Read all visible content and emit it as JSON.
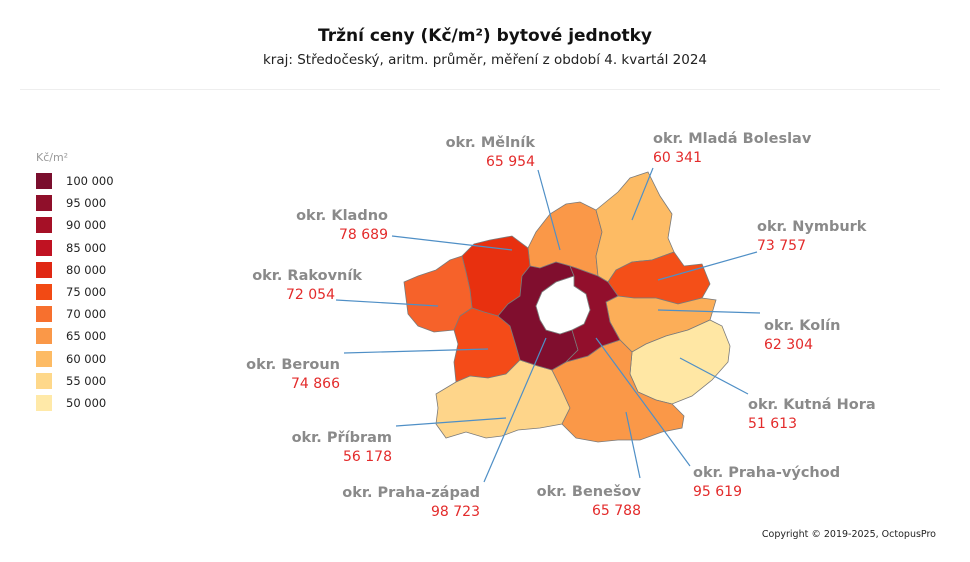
{
  "title": "Tržní ceny  (Kč/m²) bytové jednotky",
  "subtitle": "kraj: Středočeský,  aritm. průměr,  měření z období 4. kvartál 2024",
  "legend": {
    "unit": "Kč/m²",
    "items": [
      {
        "label": "100 000",
        "color": "#7a0e2e"
      },
      {
        "label": "95 000",
        "color": "#8f0f2a"
      },
      {
        "label": "90 000",
        "color": "#a51026"
      },
      {
        "label": "85 000",
        "color": "#c01222"
      },
      {
        "label": "80 000",
        "color": "#e02713"
      },
      {
        "label": "75 000",
        "color": "#f24a14"
      },
      {
        "label": "70 000",
        "color": "#f7702e"
      },
      {
        "label": "65 000",
        "color": "#fa9848"
      },
      {
        "label": "60 000",
        "color": "#fdbb64"
      },
      {
        "label": "55 000",
        "color": "#fed88a"
      },
      {
        "label": "50 000",
        "color": "#ffe9a8"
      }
    ]
  },
  "districts": [
    {
      "id": "melnik",
      "name": "okr. Mělník",
      "value": "65 954",
      "color": "#fa9848"
    },
    {
      "id": "mlada-boleslav",
      "name": "okr. Mladá Boleslav",
      "value": "60 341",
      "color": "#fdbb64"
    },
    {
      "id": "kladno",
      "name": "okr. Kladno",
      "value": "78 689",
      "color": "#e8300f"
    },
    {
      "id": "nymburk",
      "name": "okr. Nymburk",
      "value": "73 757",
      "color": "#f44f18"
    },
    {
      "id": "rakovnik",
      "name": "okr. Rakovník",
      "value": "72 054",
      "color": "#f6622a"
    },
    {
      "id": "kolin",
      "name": "okr. Kolín",
      "value": "62 304",
      "color": "#fcae58"
    },
    {
      "id": "beroun",
      "name": "okr. Beroun",
      "value": "74 866",
      "color": "#f44b18"
    },
    {
      "id": "kutna-hora",
      "name": "okr. Kutná Hora",
      "value": "51 613",
      "color": "#ffe7a4"
    },
    {
      "id": "pribram",
      "name": "okr. Příbram",
      "value": "56 178",
      "color": "#fed58a"
    },
    {
      "id": "praha-vychod",
      "name": "okr. Praha-východ",
      "value": "95 619",
      "color": "#920f2c"
    },
    {
      "id": "benesov",
      "name": "okr. Benešov",
      "value": "65 788",
      "color": "#fa9848"
    },
    {
      "id": "praha-zapad",
      "name": "okr. Praha-západ",
      "value": "98 723",
      "color": "#800e2e"
    }
  ],
  "copyright": "Copyright © 2019-2025, OctopusPro"
}
